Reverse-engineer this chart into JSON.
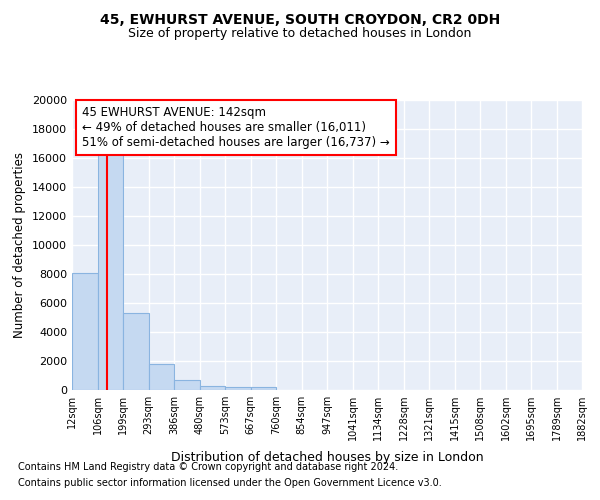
{
  "title1": "45, EWHURST AVENUE, SOUTH CROYDON, CR2 0DH",
  "title2": "Size of property relative to detached houses in London",
  "xlabel": "Distribution of detached houses by size in London",
  "ylabel": "Number of detached properties",
  "bin_edges": [
    12,
    106,
    199,
    293,
    386,
    480,
    573,
    667,
    760,
    854,
    947,
    1041,
    1134,
    1228,
    1321,
    1415,
    1508,
    1602,
    1695,
    1789,
    1882
  ],
  "bar_heights": [
    8100,
    16600,
    5300,
    1800,
    700,
    300,
    200,
    200,
    0,
    0,
    0,
    0,
    0,
    0,
    0,
    0,
    0,
    0,
    0,
    0
  ],
  "bar_color": "#c5d9f1",
  "bar_edgecolor": "#8ab4e0",
  "property_size": 142,
  "red_line_color": "#ff0000",
  "annotation_line1": "45 EWHURST AVENUE: 142sqm",
  "annotation_line2": "← 49% of detached houses are smaller (16,011)",
  "annotation_line3": "51% of semi-detached houses are larger (16,737) →",
  "ylim": [
    0,
    20000
  ],
  "yticks": [
    0,
    2000,
    4000,
    6000,
    8000,
    10000,
    12000,
    14000,
    16000,
    18000,
    20000
  ],
  "footnote1": "Contains HM Land Registry data © Crown copyright and database right 2024.",
  "footnote2": "Contains public sector information licensed under the Open Government Licence v3.0.",
  "background_color": "#e8eef8",
  "grid_color": "#ffffff"
}
